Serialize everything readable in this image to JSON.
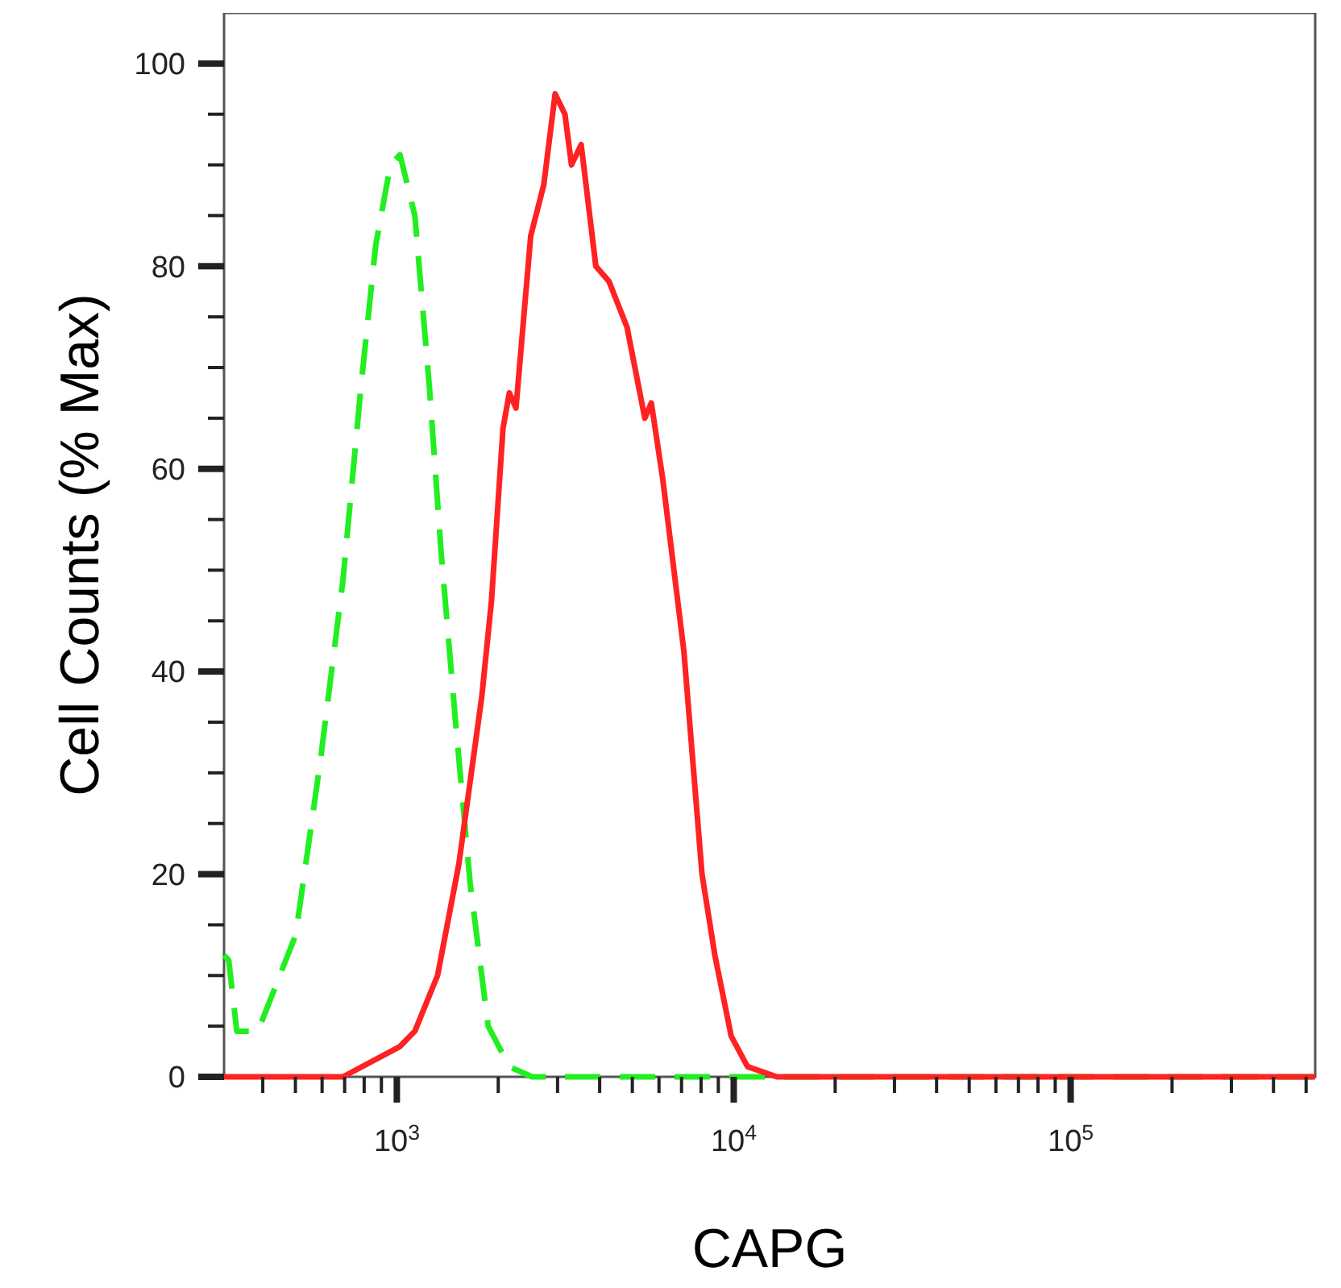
{
  "chart_data": {
    "type": "line",
    "xlabel": "CAPG",
    "ylabel": "Cell Counts (% Max)",
    "log": "x",
    "grid": false,
    "xlim": [
      307,
      532000
    ],
    "ylim": [
      0,
      105
    ],
    "xticks": [
      {
        "value": 400,
        "label": null
      },
      {
        "value": 500,
        "label": null
      },
      {
        "value": 600,
        "label": null
      },
      {
        "value": 700,
        "label": null
      },
      {
        "value": 800,
        "label": null
      },
      {
        "value": 900,
        "label": null
      },
      {
        "value": 1000,
        "label": "10$^{3}$"
      },
      {
        "value": 2000,
        "label": null
      },
      {
        "value": 3000,
        "label": null
      },
      {
        "value": 4000,
        "label": null
      },
      {
        "value": 5000,
        "label": null
      },
      {
        "value": 6000,
        "label": null
      },
      {
        "value": 7000,
        "label": null
      },
      {
        "value": 8000,
        "label": null
      },
      {
        "value": 9000,
        "label": null
      },
      {
        "value": 10000,
        "label": "10$^{4}$"
      },
      {
        "value": 20000,
        "label": null
      },
      {
        "value": 30000,
        "label": null
      },
      {
        "value": 40000,
        "label": null
      },
      {
        "value": 50000,
        "label": null
      },
      {
        "value": 60000,
        "label": null
      },
      {
        "value": 70000,
        "label": null
      },
      {
        "value": 80000,
        "label": null
      },
      {
        "value": 90000,
        "label": null
      },
      {
        "value": 100000,
        "label": "10$^{5}$"
      },
      {
        "value": 200000,
        "label": null
      },
      {
        "value": 300000,
        "label": null
      },
      {
        "value": 400000,
        "label": null
      },
      {
        "value": 500000,
        "label": null
      }
    ],
    "yticks": [
      0,
      {
        "value": 5,
        "label": null
      },
      {
        "value": 10,
        "label": null
      },
      {
        "value": 15,
        "label": null
      },
      20,
      {
        "value": 25,
        "label": null
      },
      {
        "value": 30,
        "label": null
      },
      {
        "value": 35,
        "label": null
      },
      40,
      {
        "value": 45,
        "label": null
      },
      {
        "value": 50,
        "label": null
      },
      {
        "value": 55,
        "label": null
      },
      60,
      {
        "value": 65,
        "label": null
      },
      {
        "value": 70,
        "label": null
      },
      {
        "value": 75,
        "label": null
      },
      80,
      {
        "value": 85,
        "label": null
      },
      {
        "value": 90,
        "label": null
      },
      {
        "value": 95,
        "label": null
      },
      100
    ],
    "series": [
      {
        "color": "#22ee22",
        "line_style": "dashed",
        "x": [
          307,
          317,
          335,
          387,
          501,
          592,
          692,
          782,
          865,
          957,
          1022,
          1131,
          1250,
          1352,
          1494,
          1652,
          1867,
          2158,
          2522,
          532000
        ],
        "values": [
          12,
          11.5,
          4.5,
          4.5,
          14,
          31,
          49,
          68,
          82,
          90,
          91,
          85,
          68,
          52,
          35,
          19,
          5,
          1,
          0,
          0
        ]
      },
      {
        "color": "#ff2222",
        "line_style": "solid",
        "x": [
          307,
          692,
          1022,
          1131,
          1321,
          1528,
          1787,
          1910,
          2066,
          2158,
          2258,
          2497,
          2729,
          2950,
          3155,
          3299,
          3525,
          3897,
          4263,
          4821,
          5446,
          5694,
          6156,
          7113,
          8050,
          8790,
          9830,
          10990,
          13430,
          532000
        ],
        "values": [
          0,
          0,
          3,
          4.5,
          10,
          21,
          37.5,
          47,
          64,
          67.5,
          66,
          83,
          88,
          97,
          95,
          90,
          92,
          80,
          78.5,
          74,
          65,
          66.5,
          59,
          42,
          20,
          12,
          4,
          1,
          0,
          0
        ]
      }
    ]
  }
}
